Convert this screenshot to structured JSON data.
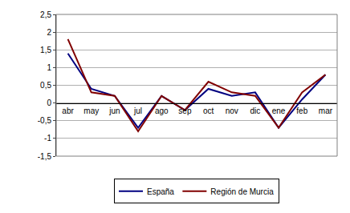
{
  "chart_data": {
    "type": "line",
    "categories": [
      "abr",
      "may",
      "jun",
      "jul",
      "ago",
      "sep",
      "oct",
      "nov",
      "dic",
      "ene",
      "feb",
      "mar"
    ],
    "series": [
      {
        "name": "España",
        "color": "#000080",
        "values": [
          1.4,
          0.4,
          0.2,
          -0.7,
          0.2,
          -0.2,
          0.4,
          0.2,
          0.3,
          -0.7,
          0.1,
          0.8
        ]
      },
      {
        "name": "Región de Murcia",
        "color": "#800000",
        "values": [
          1.8,
          0.3,
          0.2,
          -0.8,
          0.2,
          -0.2,
          0.6,
          0.3,
          0.2,
          -0.7,
          0.3,
          0.8
        ]
      }
    ],
    "ylim": [
      -1.5,
      2.5
    ],
    "yticks": [
      {
        "value": -1.5,
        "label": "-1,5"
      },
      -1,
      {
        "value": -0.5,
        "label": "-0,5"
      },
      0,
      {
        "value": 0.5,
        "label": "0,5"
      },
      1,
      {
        "value": 1.5,
        "label": "1,5"
      },
      2,
      {
        "value": 2.5,
        "label": "2,5"
      }
    ],
    "grid": true,
    "legend": "bottom"
  }
}
